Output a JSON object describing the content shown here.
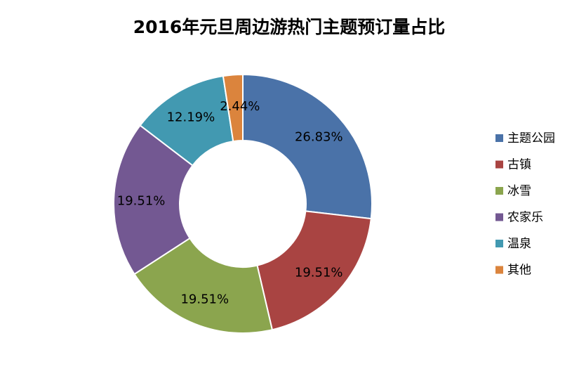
{
  "chart_data": {
    "type": "pie",
    "title": "2016年元旦周边游热门主题预订量占比",
    "categories": [
      "主题公园",
      "古镇",
      "冰雪",
      "农家乐",
      "温泉",
      "其他"
    ],
    "values": [
      26.83,
      19.51,
      19.51,
      19.51,
      12.19,
      2.44
    ],
    "data_labels": [
      "26.83%",
      "19.51%",
      "19.51%",
      "19.51%",
      "12.19%",
      "2.44%"
    ],
    "colors": [
      "#4A72A8",
      "#A94442",
      "#8BA54E",
      "#735892",
      "#4299B1",
      "#DB843D"
    ],
    "legend": {
      "placement": "right",
      "entries": [
        "主题公园",
        "古镇",
        "冰雪",
        "农家乐",
        "温泉",
        "其他"
      ]
    },
    "donut": true
  }
}
